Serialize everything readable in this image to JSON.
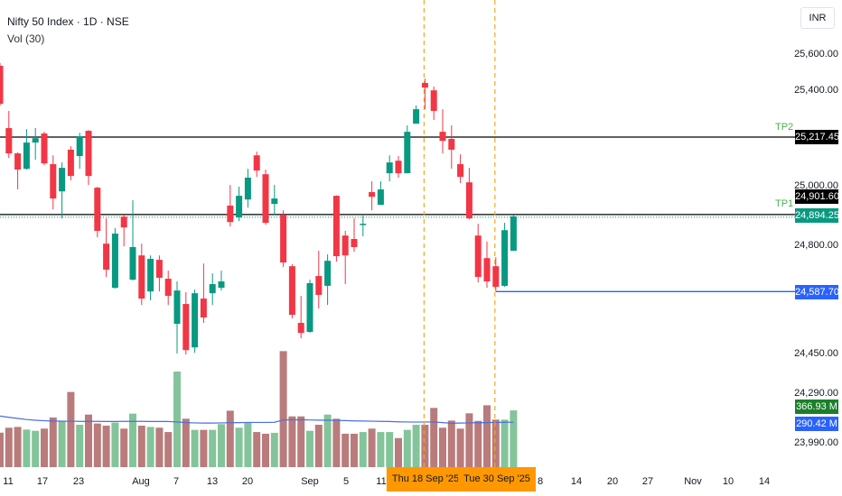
{
  "header": {
    "title": "Nifty 50 Index · 1D · NSE",
    "volume_indicator": "Vol (30)",
    "currency_button": "INR"
  },
  "colors": {
    "up": "#089981",
    "down": "#f23645",
    "vol_up": "#84c49a",
    "vol_down": "#b97b7b",
    "ma": "#4a6ee0",
    "tp_text": "#4caf50",
    "marker": "#f5a623",
    "stop": "#2962ff"
  },
  "price_axis": [
    "25,600.00",
    "25,400.00",
    "25,000.00",
    "24,800.00",
    "24,450.00",
    "24,290.00",
    "23,990.00"
  ],
  "levels": {
    "tp2": {
      "label": "TP2",
      "price": 25217.45,
      "tag": "25,217.45"
    },
    "tp1": {
      "label": "TP1",
      "price": 24901.6,
      "tag": "24,901.60"
    },
    "last": {
      "price": 24894.25,
      "tag": "24,894.25"
    },
    "stop": {
      "price": 24587.7,
      "tag": "24,587.70"
    }
  },
  "volume_tags": {
    "volume": "366.93 M",
    "ma": "290.42 M"
  },
  "time_axis": [
    "11",
    "17",
    "23",
    "Aug",
    "7",
    "13",
    "20",
    "Sep",
    "5",
    "11",
    "8",
    "14",
    "20",
    "27",
    "Nov",
    "10",
    "14"
  ],
  "markers": [
    "Thu 18 Sep '25",
    "Tue 30 Sep '25"
  ],
  "chart_data": {
    "type": "candlestick",
    "ohlc": [
      [
        25508,
        25520,
        25345,
        25353
      ],
      [
        25254,
        25324,
        25132,
        25151
      ],
      [
        25151,
        25155,
        25004,
        25085
      ],
      [
        25088,
        25250,
        25085,
        25195
      ],
      [
        25195,
        25254,
        25125,
        25213
      ],
      [
        25232,
        25239,
        25103,
        25110
      ],
      [
        25107,
        25143,
        24923,
        24967
      ],
      [
        24996,
        25114,
        24886,
        25092
      ],
      [
        25166,
        25180,
        25041,
        25059
      ],
      [
        25140,
        25235,
        25088,
        25221
      ],
      [
        25243,
        25246,
        25022,
        25059
      ],
      [
        25011,
        25015,
        24809,
        24835
      ],
      [
        24783,
        24886,
        24647,
        24677
      ],
      [
        24603,
        24846,
        24600,
        24824
      ],
      [
        24893,
        24901,
        24772,
        24849
      ],
      [
        24636,
        24960,
        24633,
        24769
      ],
      [
        24735,
        24783,
        24533,
        24559
      ],
      [
        24588,
        24735,
        24552,
        24721
      ],
      [
        24717,
        24735,
        24588,
        24644
      ],
      [
        24640,
        24673,
        24533,
        24570
      ],
      [
        24456,
        24629,
        24335,
        24592
      ],
      [
        24537,
        24585,
        24331,
        24349
      ],
      [
        24360,
        24596,
        24338,
        24581
      ],
      [
        24559,
        24702,
        24460,
        24482
      ],
      [
        24581,
        24662,
        24533,
        24618
      ],
      [
        24603,
        24673,
        24592,
        24629
      ],
      [
        24938,
        25022,
        24853,
        24871
      ],
      [
        24890,
        25015,
        24875,
        24978
      ],
      [
        24963,
        25088,
        24930,
        25052
      ],
      [
        25143,
        25158,
        25055,
        25081
      ],
      [
        25066,
        25085,
        24860,
        24868
      ],
      [
        24945,
        25022,
        24901,
        24967
      ],
      [
        24901,
        24919,
        24688,
        24706
      ],
      [
        24691,
        24699,
        24478,
        24493
      ],
      [
        24460,
        24570,
        24397,
        24419
      ],
      [
        24423,
        24636,
        24420,
        24622
      ],
      [
        24651,
        24754,
        24519,
        24574
      ],
      [
        24611,
        24739,
        24533,
        24713
      ],
      [
        24978,
        24980,
        24710,
        24732
      ],
      [
        24816,
        24835,
        24618,
        24735
      ],
      [
        24802,
        24886,
        24750,
        24769
      ],
      [
        24860,
        24897,
        24813,
        24864
      ],
      [
        24993,
        25037,
        24919,
        24974
      ],
      [
        24941,
        25037,
        24941,
        25004
      ],
      [
        25070,
        25143,
        25037,
        25114
      ],
      [
        25121,
        25140,
        25052,
        25070
      ],
      [
        25070,
        25265,
        25070,
        25239
      ],
      [
        25272,
        25346,
        25272,
        25331
      ],
      [
        25438,
        25456,
        25331,
        25419
      ],
      [
        25408,
        25423,
        25287,
        25324
      ],
      [
        25239,
        25331,
        25151,
        25202
      ],
      [
        25210,
        25265,
        25088,
        25166
      ],
      [
        25107,
        25147,
        25030,
        25055
      ],
      [
        25033,
        25092,
        24882,
        24886
      ],
      [
        24816,
        24864,
        24625,
        24647
      ],
      [
        24724,
        24791,
        24603,
        24629
      ],
      [
        24691,
        24728,
        24588,
        24607
      ],
      [
        24611,
        24868,
        24607,
        24838
      ],
      [
        24754,
        24901,
        24754,
        24894.25
      ]
    ],
    "volume_m": [
      223,
      255,
      260,
      243,
      235,
      249,
      321,
      301,
      486,
      274,
      340,
      282,
      268,
      288,
      249,
      346,
      268,
      260,
      255,
      227,
      618,
      313,
      241,
      241,
      241,
      278,
      365,
      255,
      291,
      227,
      216,
      222,
      750,
      328,
      328,
      235,
      274,
      340,
      313,
      216,
      216,
      227,
      249,
      227,
      227,
      188,
      241,
      274,
      274,
      383,
      255,
      301,
      249,
      348,
      299,
      400,
      307,
      307,
      366.93
    ],
    "volume_ma_m": [
      330,
      322,
      315,
      308,
      303,
      300,
      298,
      297,
      297,
      296,
      296,
      296,
      295,
      295,
      296,
      296,
      296,
      295,
      295,
      295,
      292,
      288,
      286,
      285,
      285,
      286,
      287,
      288,
      289,
      289,
      289,
      290,
      305,
      306,
      306,
      305,
      304,
      303,
      302,
      301,
      299,
      298,
      297,
      296,
      295,
      293,
      292,
      291,
      292,
      292,
      288,
      284,
      285,
      286,
      287,
      288,
      289,
      290,
      290.42
    ],
    "ylim": [
      23990,
      25600
    ]
  }
}
